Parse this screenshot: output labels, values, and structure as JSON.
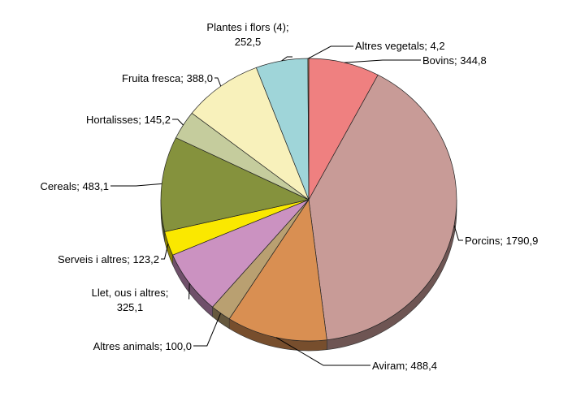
{
  "chart_data": {
    "type": "pie",
    "title": "",
    "start": "top, clockwise",
    "style": "3d-tilted",
    "slices": [
      {
        "name": "Bovins",
        "value": 344.8,
        "label": [
          "Bovins; 344,8"
        ],
        "color": "#ef8080"
      },
      {
        "name": "Porcins",
        "value": 1790.9,
        "label": [
          "Porcins; 1790,9"
        ],
        "color": "#c89b97"
      },
      {
        "name": "Aviram",
        "value": 488.4,
        "label": [
          "Aviram; 488,4"
        ],
        "color": "#d98f52"
      },
      {
        "name": "Altres animals",
        "value": 100.0,
        "label": [
          "Altres animals; 100,0"
        ],
        "color": "#b9a071"
      },
      {
        "name": "Llet, ous i altres",
        "value": 325.1,
        "label": [
          "Llet, ous i altres;",
          "325,1"
        ],
        "color": "#cb92c1"
      },
      {
        "name": "Serveis i altres",
        "value": 123.2,
        "label": [
          "Serveis i altres; 123,2"
        ],
        "color": "#fae800"
      },
      {
        "name": "Cereals",
        "value": 483.1,
        "label": [
          "Cereals; 483,1"
        ],
        "color": "#85923d"
      },
      {
        "name": "Hortalisses",
        "value": 145.2,
        "label": [
          "Hortalisses; 145,2"
        ],
        "color": "#c5cc9d"
      },
      {
        "name": "Fruita fresca",
        "value": 388.0,
        "label": [
          "Fruita fresca; 388,0"
        ],
        "color": "#f8f1bb"
      },
      {
        "name": "Plantes i flors (4)",
        "value": 252.5,
        "label": [
          "Plantes i flors (4);",
          "252,5"
        ],
        "color": "#9fd5d9"
      },
      {
        "name": "Altres vegetals",
        "value": 4.2,
        "label": [
          "Altres vegetals; 4,2"
        ],
        "color": "#e9a15e"
      }
    ]
  }
}
